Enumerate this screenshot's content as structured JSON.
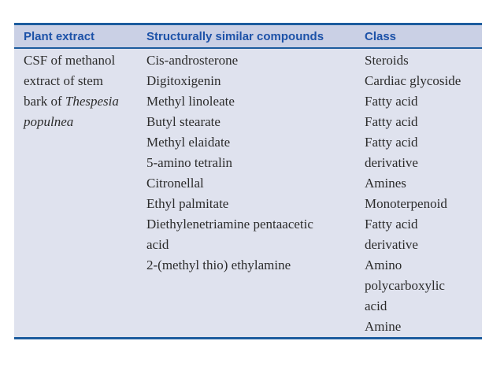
{
  "colors": {
    "table_border": "#1d5c9e",
    "header_background": "#cad0e5",
    "body_background": "#dfe2ee",
    "header_text": "#1d52a8",
    "body_text": "#2c2c2c"
  },
  "table": {
    "headers": {
      "col1": "Plant extract",
      "col2": "Structurally similar compounds",
      "col3": "Class"
    },
    "plant_extract": {
      "line1": "CSF of methanol",
      "line2": "extract of stem",
      "line3_text": "bark of ",
      "line3_italic": "Thespesia",
      "line4_italic": "populnea"
    },
    "compounds": [
      "Cis-androsterone",
      "Digitoxigenin",
      "Methyl linoleate",
      "Butyl stearate",
      "Methyl elaidate",
      "5-amino tetralin",
      "Citronellal",
      "Ethyl palmitate",
      "Diethylenetriamine pentaacetic",
      "acid",
      "2-(methyl thio) ethylamine"
    ],
    "classes": [
      "Steroids",
      "Cardiac glycoside",
      "Fatty acid",
      "Fatty acid",
      "Fatty acid",
      "derivative",
      "Amines",
      "Monoterpenoid",
      "Fatty acid",
      "derivative",
      "Amino",
      "polycarboxylic",
      "acid",
      "Amine"
    ]
  }
}
